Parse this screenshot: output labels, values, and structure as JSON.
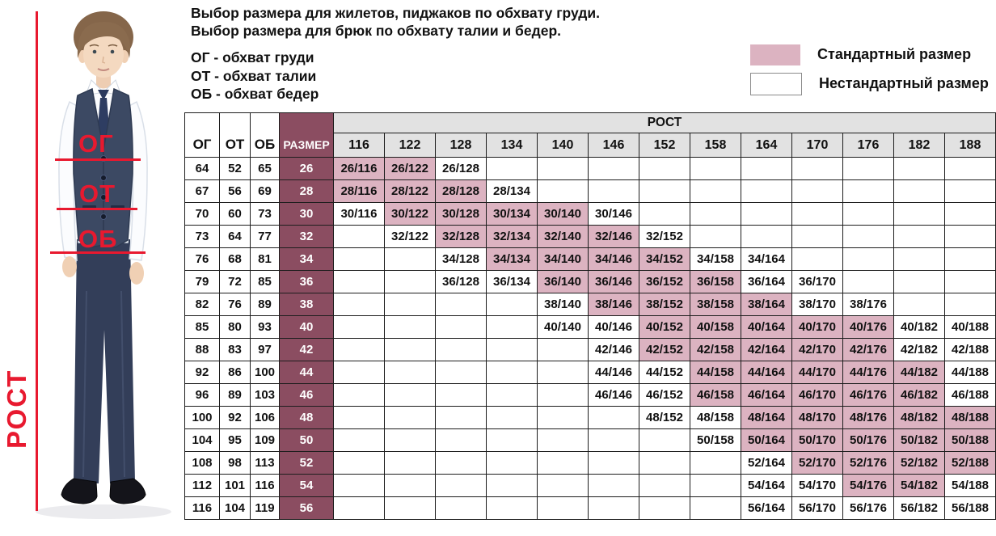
{
  "header": {
    "title_line1": "Выбор размера для жилетов, пиджаков по обхвату груди.",
    "title_line2": "Выбор размера для брюк по обхвату талии и бедер.",
    "abbrev_chest": "ОГ - обхват груди",
    "abbrev_waist": "ОТ - обхват талии",
    "abbrev_hips": "ОБ - обхват бедер"
  },
  "legend": {
    "standard": "Стандартный размер",
    "nonstandard": "Нестандартный размер"
  },
  "figure": {
    "chest_label": "ОГ",
    "waist_label": "ОТ",
    "hips_label": "ОБ",
    "height_label": "РОСТ"
  },
  "colors": {
    "standard_cell_pink": "#dcb3c1",
    "size_column_maroon": "#8b4d61",
    "header_gray": "#e2e2e2",
    "annotation_red": "#e8192f"
  },
  "table": {
    "col_headers": {
      "og": "ОГ",
      "ot": "ОТ",
      "ob": "ОБ",
      "size": "РАЗМЕР",
      "rost": "РОСТ"
    },
    "heights": [
      "116",
      "122",
      "128",
      "134",
      "140",
      "146",
      "152",
      "158",
      "164",
      "170",
      "176",
      "182",
      "188"
    ],
    "rows": [
      {
        "og": "64",
        "ot": "52",
        "ob": "65",
        "size": "26",
        "cells": [
          [
            "26/116",
            "s"
          ],
          [
            "26/122",
            "s"
          ],
          [
            "26/128",
            "n"
          ],
          null,
          null,
          null,
          null,
          null,
          null,
          null,
          null,
          null,
          null
        ]
      },
      {
        "og": "67",
        "ot": "56",
        "ob": "69",
        "size": "28",
        "cells": [
          [
            "28/116",
            "s"
          ],
          [
            "28/122",
            "s"
          ],
          [
            "28/128",
            "s"
          ],
          [
            "28/134",
            "n"
          ],
          null,
          null,
          null,
          null,
          null,
          null,
          null,
          null,
          null
        ]
      },
      {
        "og": "70",
        "ot": "60",
        "ob": "73",
        "size": "30",
        "cells": [
          [
            "30/116",
            "n"
          ],
          [
            "30/122",
            "s"
          ],
          [
            "30/128",
            "s"
          ],
          [
            "30/134",
            "s"
          ],
          [
            "30/140",
            "s"
          ],
          [
            "30/146",
            "n"
          ],
          null,
          null,
          null,
          null,
          null,
          null,
          null
        ]
      },
      {
        "og": "73",
        "ot": "64",
        "ob": "77",
        "size": "32",
        "cells": [
          null,
          [
            "32/122",
            "n"
          ],
          [
            "32/128",
            "s"
          ],
          [
            "32/134",
            "s"
          ],
          [
            "32/140",
            "s"
          ],
          [
            "32/146",
            "s"
          ],
          [
            "32/152",
            "n"
          ],
          null,
          null,
          null,
          null,
          null,
          null
        ]
      },
      {
        "og": "76",
        "ot": "68",
        "ob": "81",
        "size": "34",
        "cells": [
          null,
          null,
          [
            "34/128",
            "n"
          ],
          [
            "34/134",
            "s"
          ],
          [
            "34/140",
            "s"
          ],
          [
            "34/146",
            "s"
          ],
          [
            "34/152",
            "s"
          ],
          [
            "34/158",
            "n"
          ],
          [
            "34/164",
            "n"
          ],
          null,
          null,
          null,
          null
        ]
      },
      {
        "og": "79",
        "ot": "72",
        "ob": "85",
        "size": "36",
        "cells": [
          null,
          null,
          [
            "36/128",
            "n"
          ],
          [
            "36/134",
            "n"
          ],
          [
            "36/140",
            "s"
          ],
          [
            "36/146",
            "s"
          ],
          [
            "36/152",
            "s"
          ],
          [
            "36/158",
            "s"
          ],
          [
            "36/164",
            "n"
          ],
          [
            "36/170",
            "n"
          ],
          null,
          null,
          null
        ]
      },
      {
        "og": "82",
        "ot": "76",
        "ob": "89",
        "size": "38",
        "cells": [
          null,
          null,
          null,
          null,
          [
            "38/140",
            "n"
          ],
          [
            "38/146",
            "s"
          ],
          [
            "38/152",
            "s"
          ],
          [
            "38/158",
            "s"
          ],
          [
            "38/164",
            "s"
          ],
          [
            "38/170",
            "n"
          ],
          [
            "38/176",
            "n"
          ],
          null,
          null
        ]
      },
      {
        "og": "85",
        "ot": "80",
        "ob": "93",
        "size": "40",
        "cells": [
          null,
          null,
          null,
          null,
          [
            "40/140",
            "n"
          ],
          [
            "40/146",
            "n"
          ],
          [
            "40/152",
            "s"
          ],
          [
            "40/158",
            "s"
          ],
          [
            "40/164",
            "s"
          ],
          [
            "40/170",
            "s"
          ],
          [
            "40/176",
            "s"
          ],
          [
            "40/182",
            "n"
          ],
          [
            "40/188",
            "n"
          ]
        ]
      },
      {
        "og": "88",
        "ot": "83",
        "ob": "97",
        "size": "42",
        "cells": [
          null,
          null,
          null,
          null,
          null,
          [
            "42/146",
            "n"
          ],
          [
            "42/152",
            "s"
          ],
          [
            "42/158",
            "s"
          ],
          [
            "42/164",
            "s"
          ],
          [
            "42/170",
            "s"
          ],
          [
            "42/176",
            "s"
          ],
          [
            "42/182",
            "n"
          ],
          [
            "42/188",
            "n"
          ]
        ]
      },
      {
        "og": "92",
        "ot": "86",
        "ob": "100",
        "size": "44",
        "cells": [
          null,
          null,
          null,
          null,
          null,
          [
            "44/146",
            "n"
          ],
          [
            "44/152",
            "n"
          ],
          [
            "44/158",
            "s"
          ],
          [
            "44/164",
            "s"
          ],
          [
            "44/170",
            "s"
          ],
          [
            "44/176",
            "s"
          ],
          [
            "44/182",
            "s"
          ],
          [
            "44/188",
            "n"
          ]
        ]
      },
      {
        "og": "96",
        "ot": "89",
        "ob": "103",
        "size": "46",
        "cells": [
          null,
          null,
          null,
          null,
          null,
          [
            "46/146",
            "n"
          ],
          [
            "46/152",
            "n"
          ],
          [
            "46/158",
            "s"
          ],
          [
            "46/164",
            "s"
          ],
          [
            "46/170",
            "s"
          ],
          [
            "46/176",
            "s"
          ],
          [
            "46/182",
            "s"
          ],
          [
            "46/188",
            "n"
          ]
        ]
      },
      {
        "og": "100",
        "ot": "92",
        "ob": "106",
        "size": "48",
        "cells": [
          null,
          null,
          null,
          null,
          null,
          null,
          [
            "48/152",
            "n"
          ],
          [
            "48/158",
            "n"
          ],
          [
            "48/164",
            "s"
          ],
          [
            "48/170",
            "s"
          ],
          [
            "48/176",
            "s"
          ],
          [
            "48/182",
            "s"
          ],
          [
            "48/188",
            "s"
          ]
        ]
      },
      {
        "og": "104",
        "ot": "95",
        "ob": "109",
        "size": "50",
        "cells": [
          null,
          null,
          null,
          null,
          null,
          null,
          null,
          [
            "50/158",
            "n"
          ],
          [
            "50/164",
            "s"
          ],
          [
            "50/170",
            "s"
          ],
          [
            "50/176",
            "s"
          ],
          [
            "50/182",
            "s"
          ],
          [
            "50/188",
            "s"
          ]
        ]
      },
      {
        "og": "108",
        "ot": "98",
        "ob": "113",
        "size": "52",
        "cells": [
          null,
          null,
          null,
          null,
          null,
          null,
          null,
          null,
          [
            "52/164",
            "n"
          ],
          [
            "52/170",
            "s"
          ],
          [
            "52/176",
            "s"
          ],
          [
            "52/182",
            "s"
          ],
          [
            "52/188",
            "s"
          ]
        ]
      },
      {
        "og": "112",
        "ot": "101",
        "ob": "116",
        "size": "54",
        "cells": [
          null,
          null,
          null,
          null,
          null,
          null,
          null,
          null,
          [
            "54/164",
            "n"
          ],
          [
            "54/170",
            "n"
          ],
          [
            "54/176",
            "s"
          ],
          [
            "54/182",
            "s"
          ],
          [
            "54/188",
            "n"
          ]
        ]
      },
      {
        "og": "116",
        "ot": "104",
        "ob": "119",
        "size": "56",
        "cells": [
          null,
          null,
          null,
          null,
          null,
          null,
          null,
          null,
          [
            "56/164",
            "n"
          ],
          [
            "56/170",
            "n"
          ],
          [
            "56/176",
            "n"
          ],
          [
            "56/182",
            "n"
          ],
          [
            "56/188",
            "n"
          ]
        ]
      }
    ]
  }
}
